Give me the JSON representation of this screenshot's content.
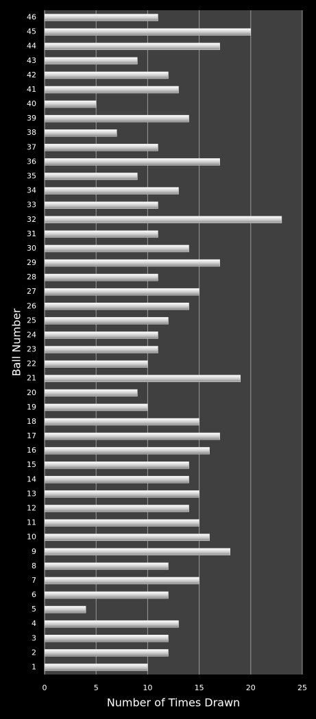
{
  "chart_data": {
    "type": "barh",
    "xlabel": "Number of Times Drawn",
    "ylabel": "Ball Number",
    "categories": [
      "1",
      "2",
      "3",
      "4",
      "5",
      "6",
      "7",
      "8",
      "9",
      "10",
      "11",
      "12",
      "13",
      "14",
      "15",
      "16",
      "17",
      "18",
      "19",
      "20",
      "21",
      "22",
      "23",
      "24",
      "25",
      "26",
      "27",
      "28",
      "29",
      "30",
      "31",
      "32",
      "33",
      "34",
      "35",
      "36",
      "37",
      "38",
      "39",
      "40",
      "41",
      "42",
      "43",
      "44",
      "45",
      "46"
    ],
    "values": [
      10,
      12,
      12,
      13,
      4,
      12,
      15,
      12,
      18,
      16,
      15,
      14,
      15,
      14,
      14,
      16,
      17,
      15,
      10,
      9,
      19,
      10,
      11,
      11,
      12,
      14,
      15,
      11,
      17,
      14,
      11,
      23,
      11,
      13,
      9,
      17,
      11,
      7,
      14,
      5,
      13,
      12,
      9,
      17,
      20,
      11
    ],
    "color": "#e6e6e6",
    "xlim": [
      0,
      25
    ],
    "xticks": [
      0,
      5,
      10,
      15,
      20,
      25
    ],
    "grid": true
  }
}
